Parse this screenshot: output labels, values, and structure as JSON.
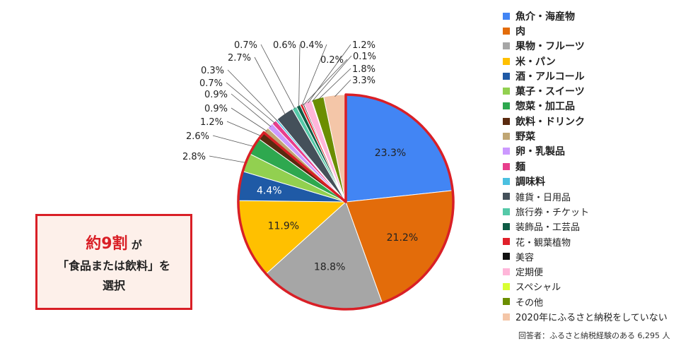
{
  "chart_data": {
    "type": "pie",
    "title": "",
    "categories": [
      "魚介・海産物",
      "肉",
      "果物・フルーツ",
      "米・パン",
      "酒・アルコール",
      "菓子・スイーツ",
      "惣菜・加工品",
      "飲料・ドリンク",
      "野菜",
      "卵・乳製品",
      "麺",
      "調味料",
      "雑貨・日用品",
      "旅行券・チケット",
      "装飾品・工芸品",
      "花・観葉植物",
      "美容",
      "定期便",
      "スペシャル",
      "その他",
      "2020年にふるさと納税をしていない"
    ],
    "values": [
      23.3,
      21.2,
      18.8,
      11.9,
      4.4,
      2.8,
      2.6,
      1.2,
      0.9,
      0.9,
      0.7,
      0.3,
      2.7,
      0.7,
      0.6,
      0.4,
      0.2,
      1.2,
      0.1,
      1.8,
      3.3
    ],
    "labels": [
      "23.3%",
      "21.2%",
      "18.8%",
      "11.9%",
      "4.4%",
      "2.8%",
      "2.6%",
      "1.2%",
      "0.9%",
      "0.9%",
      "0.7%",
      "0.3%",
      "2.7%",
      "0.7%",
      "0.6%",
      "0.4%",
      "0.2%",
      "1.2%",
      "0.1%",
      "1.8%",
      "3.3%"
    ],
    "colors": [
      "#4285f4",
      "#e36c0a",
      "#a6a6a6",
      "#ffc000",
      "#1f5aa6",
      "#92d050",
      "#2ea84f",
      "#5a2a0f",
      "#c0a673",
      "#cc99ff",
      "#e83e8c",
      "#4bc0e0",
      "#44505a",
      "#55c9a8",
      "#0e5c45",
      "#e0202a",
      "#111111",
      "#ffb6d9",
      "#d9ff33",
      "#6b8e00",
      "#f4c6a8"
    ],
    "food_group_count": 8,
    "legend_bold_count": 12,
    "legend": "right"
  },
  "callout": {
    "highlight": "約9割",
    "suffix": "が",
    "line2": "「食品または飲料」を",
    "line3": "選択"
  },
  "footnote": "回答者：ふるさと納税経験のある 6,295 人"
}
